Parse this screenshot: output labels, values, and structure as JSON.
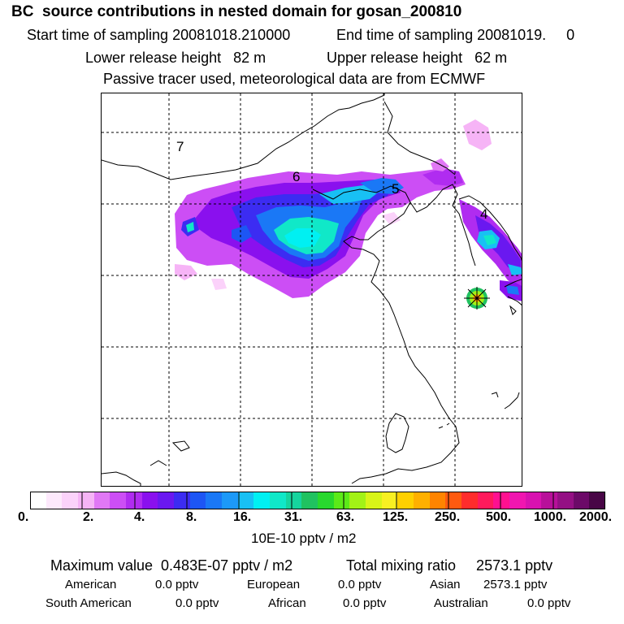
{
  "header": {
    "title": "BC  source contributions in nested domain for gosan_200810",
    "start_label": "Start time of sampling 20081018.210000",
    "end_label": "End time of sampling 20081019.     0",
    "lower_label": "Lower release height   82 m",
    "upper_label": "Upper release height   62 m",
    "note": "Passive tracer used, meteorological data are from ECMWF"
  },
  "map": {
    "contour_labels": [
      "7",
      "6",
      "5",
      "4"
    ],
    "site_marker": "receptor-star"
  },
  "colorbar": {
    "tick_labels": [
      "0.",
      "2.",
      "4.",
      "8.",
      "16.",
      "31.",
      "63.",
      "125.",
      "250.",
      "500.",
      "1000.",
      "2000."
    ],
    "units": "10E-10 pptv / m2",
    "colors": [
      "#ffffff",
      "#fde9fc",
      "#fbd2fa",
      "#f6b4f6",
      "#e178f5",
      "#cc4ef5",
      "#b02cf0",
      "#8a10ee",
      "#6a18f0",
      "#3c2cf2",
      "#1d56f4",
      "#1a78f6",
      "#1c99f8",
      "#18c0f4",
      "#00f0f2",
      "#10e8c8",
      "#16d49e",
      "#20c260",
      "#28d82e",
      "#5cea18",
      "#a2f216",
      "#d8f418",
      "#f8f022",
      "#ffd000",
      "#ffb000",
      "#ff8400",
      "#ff5a10",
      "#ff2c2c",
      "#ff1a5c",
      "#ff1090",
      "#f016b0",
      "#d812b0",
      "#b8109a",
      "#941084",
      "#6c0a68",
      "#480646"
    ],
    "scale": "log2"
  },
  "summary": {
    "max_label": "Maximum value  0.483E-07 pptv / m2",
    "total_label": "Total mixing ratio     2573.1 pptv",
    "american_label": "American",
    "american_value": "0.0 pptv",
    "european_label": "European",
    "european_value": "0.0 pptv",
    "asian_label": "Asian",
    "asian_value": "2573.1 pptv",
    "south_american_label": "South American",
    "south_american_value": "0.0 pptv",
    "african_label": "African",
    "african_value": "0.0 pptv",
    "australian_label": "Australian",
    "australian_value": "0.0 pptv"
  }
}
